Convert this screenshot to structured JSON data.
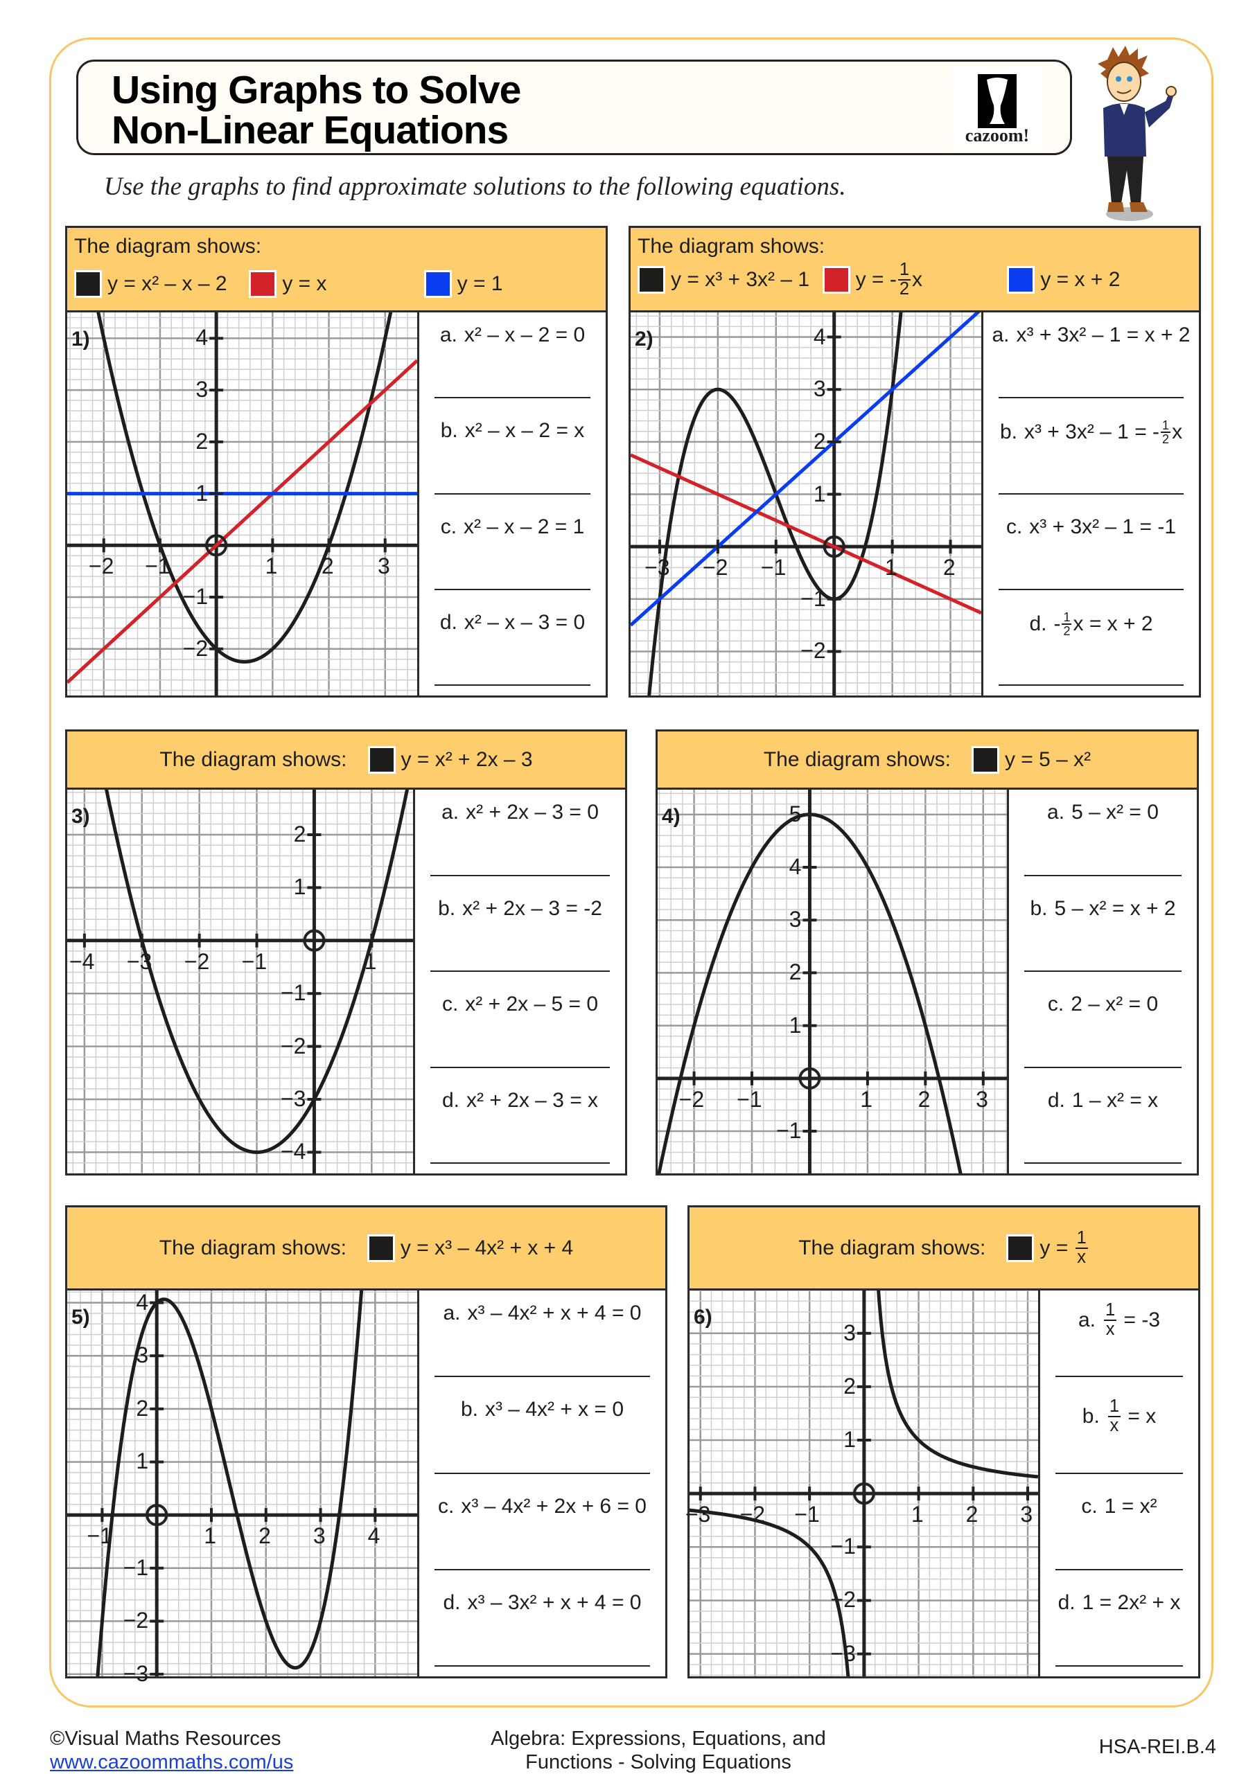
{
  "header": {
    "title_line1": "Using Graphs to Solve",
    "title_line2": "Non-Linear Equations",
    "logo_text": "cazoom!",
    "instruction": "Use the graphs to find approximate solutions to the following equations."
  },
  "panels": [
    {
      "number": "1)",
      "header_label": "The diagram shows:",
      "legend": [
        {
          "color": "#1d1d1b",
          "eq": [
            "y = x² – x – 2"
          ]
        },
        {
          "color": "#d2232a",
          "eq": [
            "y = x"
          ]
        },
        {
          "color": "#0a3cf0",
          "eq": [
            "y = 1"
          ]
        }
      ],
      "xlim": [
        -2.65,
        3.57
      ],
      "ylim": [
        -2.9,
        4.5
      ],
      "xticks": [
        "−2",
        "−1",
        "1",
        "2",
        "3"
      ],
      "yticks": [
        "−2",
        "−1",
        "1",
        "2",
        "3",
        "4"
      ],
      "questions": [
        {
          "label": "a.",
          "eq": [
            "x² – x – 2 = 0"
          ]
        },
        {
          "label": "b.",
          "eq": [
            "x² – x – 2 = x"
          ]
        },
        {
          "label": "c.",
          "eq": [
            "x² – x – 2 = 1"
          ]
        },
        {
          "label": "d.",
          "eq": [
            "x² – x – 3 = 0"
          ]
        }
      ]
    },
    {
      "number": "2)",
      "header_label": "The diagram shows:",
      "legend": [
        {
          "color": "#1d1d1b",
          "eq": [
            "y = x³ + 3x² – 1"
          ]
        },
        {
          "color": "#d2232a",
          "eq": [
            "y = -",
            {
              "num": "1",
              "den": "2"
            },
            "x"
          ]
        },
        {
          "color": "#0a3cf0",
          "eq": [
            "y = x + 2"
          ]
        }
      ],
      "xlim": [
        -3.5,
        2.53
      ],
      "ylim": [
        -2.84,
        4.47
      ],
      "xticks": [
        "−3",
        "−2",
        "−1",
        "1",
        "2"
      ],
      "yticks": [
        "−2",
        "−1",
        "1",
        "2",
        "3",
        "4"
      ],
      "questions": [
        {
          "label": "a.",
          "eq": [
            "x³ + 3x² – 1 = x + 2"
          ]
        },
        {
          "label": "b.",
          "eq": [
            "x³ + 3x² – 1 = -",
            {
              "num": "1",
              "den": "2",
              "small": true
            },
            "x"
          ]
        },
        {
          "label": "c.",
          "eq": [
            "x³ + 3x² – 1 = -1"
          ]
        },
        {
          "label": "d.",
          "eq": [
            "-",
            {
              "num": "1",
              "den": "2",
              "small": true
            },
            "x = x + 2"
          ]
        }
      ]
    },
    {
      "number": "3)",
      "header_label": "The diagram shows:",
      "legend": [
        {
          "color": "#1d1d1b",
          "eq": [
            "y = x² + 2x – 3"
          ]
        }
      ],
      "xlim": [
        -4.3,
        1.72
      ],
      "ylim": [
        -4.4,
        2.85
      ],
      "xticks": [
        "−4",
        "−3",
        "−2",
        "−1",
        "1"
      ],
      "yticks": [
        "−4",
        "−3",
        "−2",
        "−1",
        "1",
        "2"
      ],
      "questions": [
        {
          "label": "a.",
          "eq": [
            "x² + 2x – 3 = 0"
          ]
        },
        {
          "label": "b.",
          "eq": [
            "x² + 2x – 3 = -2"
          ]
        },
        {
          "label": "c.",
          "eq": [
            "x² + 2x – 5 = 0"
          ]
        },
        {
          "label": "d.",
          "eq": [
            "x² + 2x – 3 = x"
          ]
        }
      ]
    },
    {
      "number": "4)",
      "header_label": "The diagram shows:",
      "legend": [
        {
          "color": "#1d1d1b",
          "eq": [
            "y = 5 – x²"
          ]
        }
      ],
      "xlim": [
        -2.63,
        3.41
      ],
      "ylim": [
        -1.8,
        5.47
      ],
      "xticks": [
        "−2",
        "−1",
        "1",
        "2",
        "3"
      ],
      "yticks": [
        "−1",
        "1",
        "2",
        "3",
        "4",
        "5"
      ],
      "questions": [
        {
          "label": "a.",
          "eq": [
            "5 – x² = 0"
          ]
        },
        {
          "label": "b.",
          "eq": [
            "5 – x² = x + 2"
          ]
        },
        {
          "label": "c.",
          "eq": [
            "2 – x² = 0"
          ]
        },
        {
          "label": "d.",
          "eq": [
            "1 – x² = x"
          ]
        }
      ]
    },
    {
      "number": "5)",
      "header_label": "The diagram shows:",
      "legend": [
        {
          "color": "#1d1d1b",
          "eq": [
            "y = x³ – 4x² + x + 4"
          ]
        }
      ],
      "xlim": [
        -1.64,
        4.77
      ],
      "ylim": [
        -3.04,
        4.23
      ],
      "xticks": [
        "−1",
        "1",
        "2",
        "3",
        "4"
      ],
      "yticks": [
        "−3",
        "−2",
        "−1",
        "1",
        "2",
        "3",
        "4"
      ],
      "questions": [
        {
          "label": "a.",
          "eq": [
            "x³ – 4x² + x + 4 = 0"
          ]
        },
        {
          "label": "b.",
          "eq": [
            "x³ – 4x² + x = 0"
          ]
        },
        {
          "label": "c.",
          "eq": [
            "x³ – 4x² + 2x + 6 = 0"
          ]
        },
        {
          "label": "d.",
          "eq": [
            "x³ – 3x² + x + 4 = 0"
          ]
        }
      ]
    },
    {
      "number": "6)",
      "header_label": "The diagram shows:",
      "legend": [
        {
          "color": "#1d1d1b",
          "eq": [
            "y = ",
            {
              "num": "1",
              "den": "x"
            }
          ]
        }
      ],
      "xlim": [
        -3.2,
        3.19
      ],
      "ylim": [
        -3.42,
        3.8
      ],
      "xticks": [
        "−3",
        "−2",
        "−1",
        "1",
        "2",
        "3"
      ],
      "yticks": [
        "−3",
        "−2",
        "−1",
        "1",
        "2",
        "3"
      ],
      "questions": [
        {
          "label": "a.",
          "eq": [
            {
              "num": "1",
              "den": "x"
            },
            " = -3"
          ]
        },
        {
          "label": "b.",
          "eq": [
            {
              "num": "1",
              "den": "x"
            },
            " = x"
          ]
        },
        {
          "label": "c.",
          "eq": [
            "1 = x²"
          ]
        },
        {
          "label": "d.",
          "eq": [
            "1 = 2x² + x"
          ]
        }
      ]
    }
  ],
  "footer": {
    "copyright": "©Visual Maths Resources",
    "link": "www.cazoommaths.com/us",
    "topic_line1": "Algebra: Expressions, Equations, and",
    "topic_line2": "Functions - Solving Equations",
    "standard": "HSA-REI.B.4"
  }
}
